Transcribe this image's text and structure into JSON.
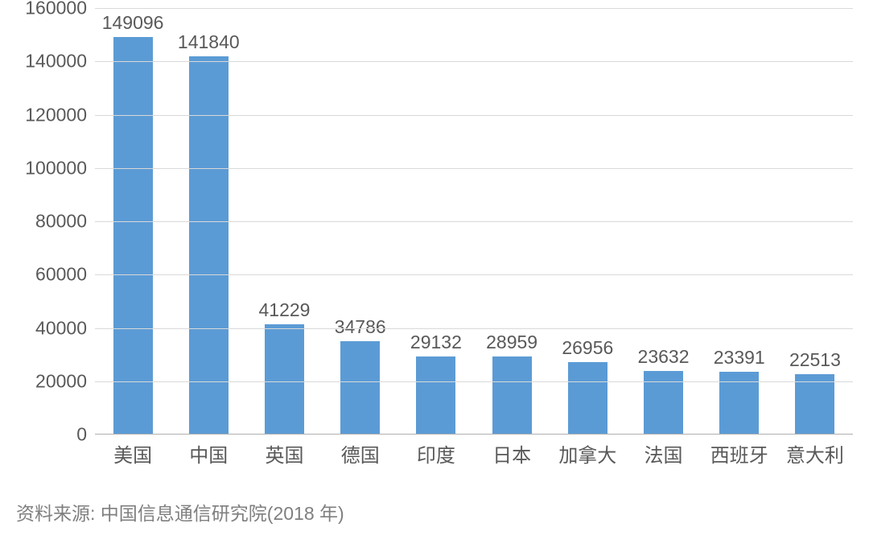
{
  "chart": {
    "type": "bar",
    "categories": [
      "美国",
      "中国",
      "英国",
      "德国",
      "印度",
      "日本",
      "加拿大",
      "法国",
      "西班牙",
      "意大利"
    ],
    "values": [
      149096,
      141840,
      41229,
      34786,
      29132,
      28959,
      26956,
      23632,
      23391,
      22513
    ],
    "bar_color": "#5b9bd5",
    "background_color": "#ffffff",
    "grid_color": "#d9d9d9",
    "axis_line_color": "#b0b0b0",
    "ylim": [
      0,
      160000
    ],
    "ytick_step": 20000,
    "yticks": [
      0,
      20000,
      40000,
      60000,
      80000,
      100000,
      120000,
      140000,
      160000
    ],
    "tick_color": "#595959",
    "tick_fontsize": 23,
    "value_label_color": "#595959",
    "value_label_fontsize": 23,
    "x_label_color": "#595959",
    "x_label_fontsize": 24,
    "bar_width_ratio": 0.52
  },
  "source": {
    "text": "资料来源: 中国信息通信研究院(2018 年)",
    "color": "#7f7f7f",
    "fontsize": 23
  }
}
